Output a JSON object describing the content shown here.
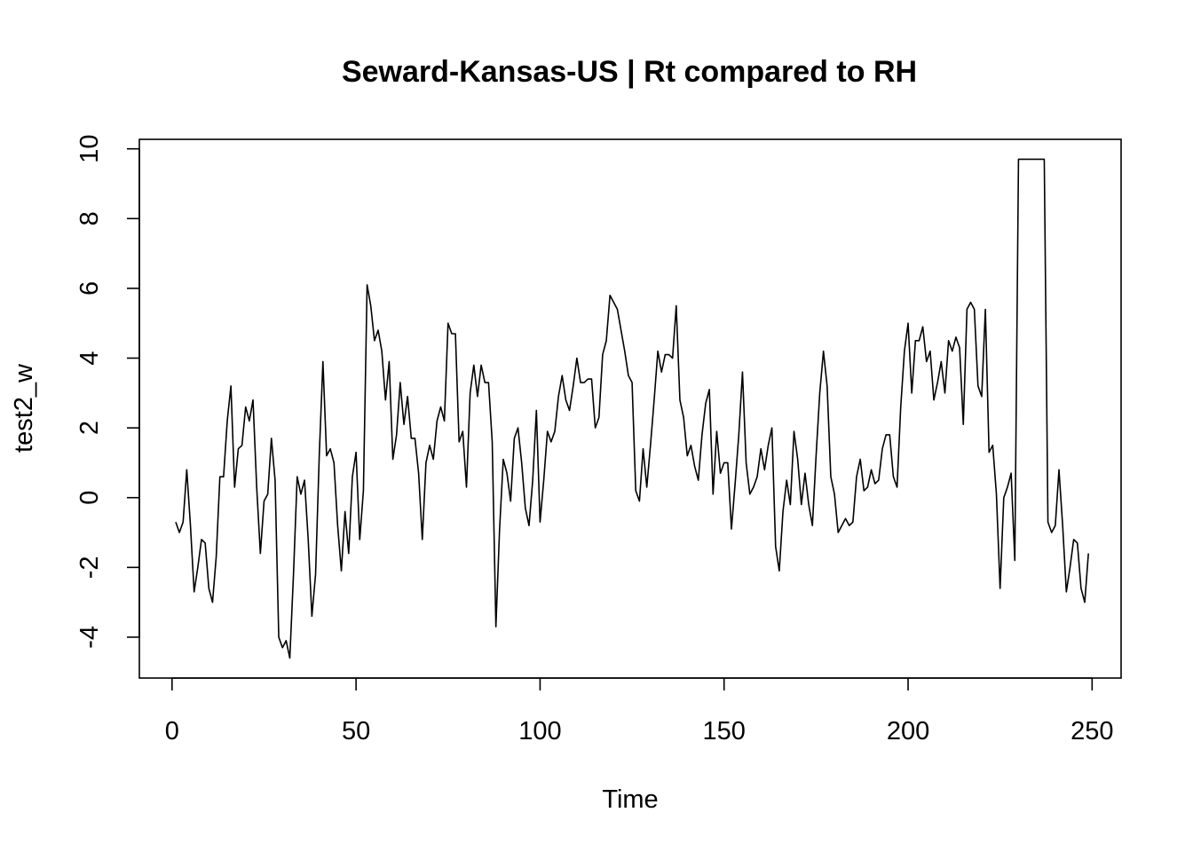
{
  "chart_data": {
    "type": "line",
    "title": "Seward-Kansas-US | Rt compared to RH",
    "xlabel": "Time",
    "ylabel": "test2_w",
    "xlim": [
      1,
      248
    ],
    "ylim": [
      -4.6,
      9.7
    ],
    "x_ticks": [
      0,
      50,
      100,
      150,
      200,
      250
    ],
    "y_ticks": [
      -4,
      -2,
      0,
      2,
      4,
      6,
      8,
      10
    ],
    "grid": false,
    "legend": "none",
    "line_color": "#000000",
    "series": [
      {
        "values": [
          -0.7,
          -1.0,
          -0.7,
          0.8,
          -0.8,
          -2.7,
          -2.0,
          -1.2,
          -1.3,
          -2.6,
          -3.0,
          -1.7,
          0.6,
          0.6,
          2.2,
          3.2,
          0.3,
          1.4,
          1.5,
          2.6,
          2.2,
          2.8,
          0.3,
          -1.6,
          -0.1,
          0.1,
          1.7,
          0.5,
          -4.0,
          -4.3,
          -4.1,
          -4.6,
          -2.2,
          0.6,
          0.1,
          0.5,
          -1.2,
          -3.4,
          -2.2,
          1.2,
          3.9,
          1.2,
          1.4,
          1.0,
          -0.8,
          -2.1,
          -0.4,
          -1.6,
          0.6,
          1.3,
          -1.2,
          0.2,
          6.1,
          5.5,
          4.5,
          4.8,
          4.2,
          2.8,
          3.9,
          1.1,
          1.8,
          3.3,
          2.1,
          2.9,
          1.7,
          1.7,
          0.7,
          -1.2,
          1.0,
          1.5,
          1.1,
          2.2,
          2.6,
          2.2,
          5.0,
          4.7,
          4.7,
          1.6,
          1.9,
          0.3,
          3.0,
          3.8,
          2.9,
          3.8,
          3.3,
          3.3,
          1.6,
          -3.7,
          -0.9,
          1.1,
          0.7,
          -0.1,
          1.7,
          2.0,
          1.0,
          -0.3,
          -0.8,
          0.5,
          2.5,
          -0.7,
          0.5,
          1.9,
          1.6,
          1.9,
          2.9,
          3.5,
          2.8,
          2.5,
          3.2,
          4.0,
          3.3,
          3.3,
          3.4,
          3.4,
          2.0,
          2.3,
          4.1,
          4.5,
          5.8,
          5.6,
          5.4,
          4.8,
          4.2,
          3.5,
          3.3,
          0.2,
          -0.1,
          1.4,
          0.3,
          1.5,
          2.8,
          4.2,
          3.6,
          4.1,
          4.1,
          4.0,
          5.5,
          2.8,
          2.3,
          1.2,
          1.5,
          0.9,
          0.5,
          1.8,
          2.7,
          3.1,
          0.1,
          1.9,
          0.7,
          1.0,
          1.0,
          -0.9,
          0.4,
          1.8,
          3.6,
          1.0,
          0.1,
          0.3,
          0.6,
          1.4,
          0.8,
          1.5,
          2.0,
          -1.4,
          -2.1,
          -0.4,
          0.5,
          -0.2,
          1.9,
          1.1,
          -0.2,
          0.7,
          -0.2,
          -0.8,
          1.2,
          3.0,
          4.2,
          3.2,
          0.6,
          0.1,
          -1.0,
          -0.8,
          -0.6,
          -0.8,
          -0.7,
          0.6,
          1.1,
          0.2,
          0.3,
          0.8,
          0.4,
          0.5,
          1.4,
          1.8,
          1.8,
          0.6,
          0.3,
          2.6,
          4.2,
          5.0,
          3.0,
          4.5,
          4.5,
          4.9,
          3.9,
          4.2,
          2.8,
          3.3,
          3.9,
          3.0,
          4.5,
          4.2,
          4.6,
          4.3,
          2.1,
          5.4,
          5.6,
          5.4,
          3.2,
          2.9,
          5.4,
          1.3,
          1.5,
          0.1,
          -2.6,
          0.0,
          0.3,
          0.7,
          -1.8,
          9.7,
          9.7,
          9.7,
          9.7,
          9.7,
          9.7,
          9.7,
          9.7,
          -0.7,
          -1.0,
          -0.8,
          0.8,
          -0.8,
          -2.7,
          -2.0,
          -1.2,
          -1.3,
          -2.6,
          -3.0,
          -1.6
        ]
      }
    ]
  }
}
